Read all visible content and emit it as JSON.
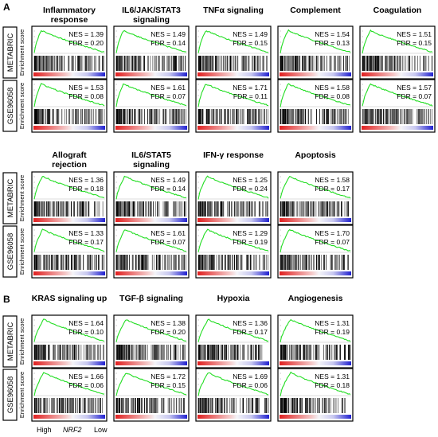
{
  "panel_labels": [
    "A",
    "B"
  ],
  "dataset_labels": {
    "metabric": "METABRIC",
    "gse": "GSE96058"
  },
  "y_axis_label": "Enrichment score",
  "x_axis": {
    "high": "High",
    "gene": "NRF2",
    "low": "Low"
  },
  "colors": {
    "curve": "#22dd22",
    "ranked_high": "#e02020",
    "ranked_low": "#2020d0",
    "frame": "#000000"
  },
  "chart_data": [
    {
      "type": "gsea",
      "title": "Inflammatory response",
      "metabric": {
        "nes": "NES = 1.39",
        "fdr": "FDR = 0.20"
      },
      "gse": {
        "nes": "NES = 1.53",
        "fdr": "FDR = 0.08"
      }
    },
    {
      "type": "gsea",
      "title": "IL6/JAK/STAT3 signaling",
      "metabric": {
        "nes": "NES = 1.49",
        "fdr": "FDR = 0.14"
      },
      "gse": {
        "nes": "NES = 1.61",
        "fdr": "FDR = 0.07"
      }
    },
    {
      "type": "gsea",
      "title": "TNFα signaling",
      "metabric": {
        "nes": "NES = 1.49",
        "fdr": "FDR = 0.15"
      },
      "gse": {
        "nes": "NES = 1.71",
        "fdr": "FDR = 0.11"
      }
    },
    {
      "type": "gsea",
      "title": "Complement",
      "metabric": {
        "nes": "NES = 1.54",
        "fdr": "FDR = 0.13"
      },
      "gse": {
        "nes": "NES = 1.58",
        "fdr": "FDR = 0.08"
      }
    },
    {
      "type": "gsea",
      "title": "Coagulation",
      "metabric": {
        "nes": "NES = 1.51",
        "fdr": "FDR = 0.15"
      },
      "gse": {
        "nes": "NES = 1.57",
        "fdr": "FDR = 0.07"
      }
    },
    {
      "type": "gsea",
      "title": "Allograft rejection",
      "metabric": {
        "nes": "NES = 1.36",
        "fdr": "FDR = 0.18"
      },
      "gse": {
        "nes": "NES = 1.33",
        "fdr": "FDR = 0.17"
      }
    },
    {
      "type": "gsea",
      "title": "IL6/STAT5 signaling",
      "metabric": {
        "nes": "NES = 1.49",
        "fdr": "FDR = 0.14"
      },
      "gse": {
        "nes": "NES = 1.61",
        "fdr": "FDR = 0.07"
      }
    },
    {
      "type": "gsea",
      "title": "IFN-γ response",
      "metabric": {
        "nes": "NES = 1.25",
        "fdr": "FDR = 0.24"
      },
      "gse": {
        "nes": "NES = 1.29",
        "fdr": "FDR = 0.19"
      }
    },
    {
      "type": "gsea",
      "title": "Apoptosis",
      "metabric": {
        "nes": "NES = 1.58",
        "fdr": "FDR = 0.17"
      },
      "gse": {
        "nes": "NES = 1.70",
        "fdr": "FDR = 0.07"
      }
    },
    {
      "type": "gsea",
      "title": "KRAS signaling up",
      "metabric": {
        "nes": "NES = 1.64",
        "fdr": "FDR = 0.10"
      },
      "gse": {
        "nes": "NES = 1.66",
        "fdr": "FDR = 0.06"
      }
    },
    {
      "type": "gsea",
      "title": "TGF-β signaling",
      "metabric": {
        "nes": "NES = 1.38",
        "fdr": "FDR = 0.20"
      },
      "gse": {
        "nes": "NES = 1.72",
        "fdr": "FDR = 0.15"
      }
    },
    {
      "type": "gsea",
      "title": "Hypoxia",
      "metabric": {
        "nes": "NES = 1.36",
        "fdr": "FDR = 0.17"
      },
      "gse": {
        "nes": "NES = 1.69",
        "fdr": "FDR = 0.06"
      }
    },
    {
      "type": "gsea",
      "title": "Angiogenesis",
      "metabric": {
        "nes": "NES = 1.31",
        "fdr": "FDR = 0.19"
      },
      "gse": {
        "nes": "NES = 1.31",
        "fdr": "FDR = 0.18"
      }
    }
  ]
}
